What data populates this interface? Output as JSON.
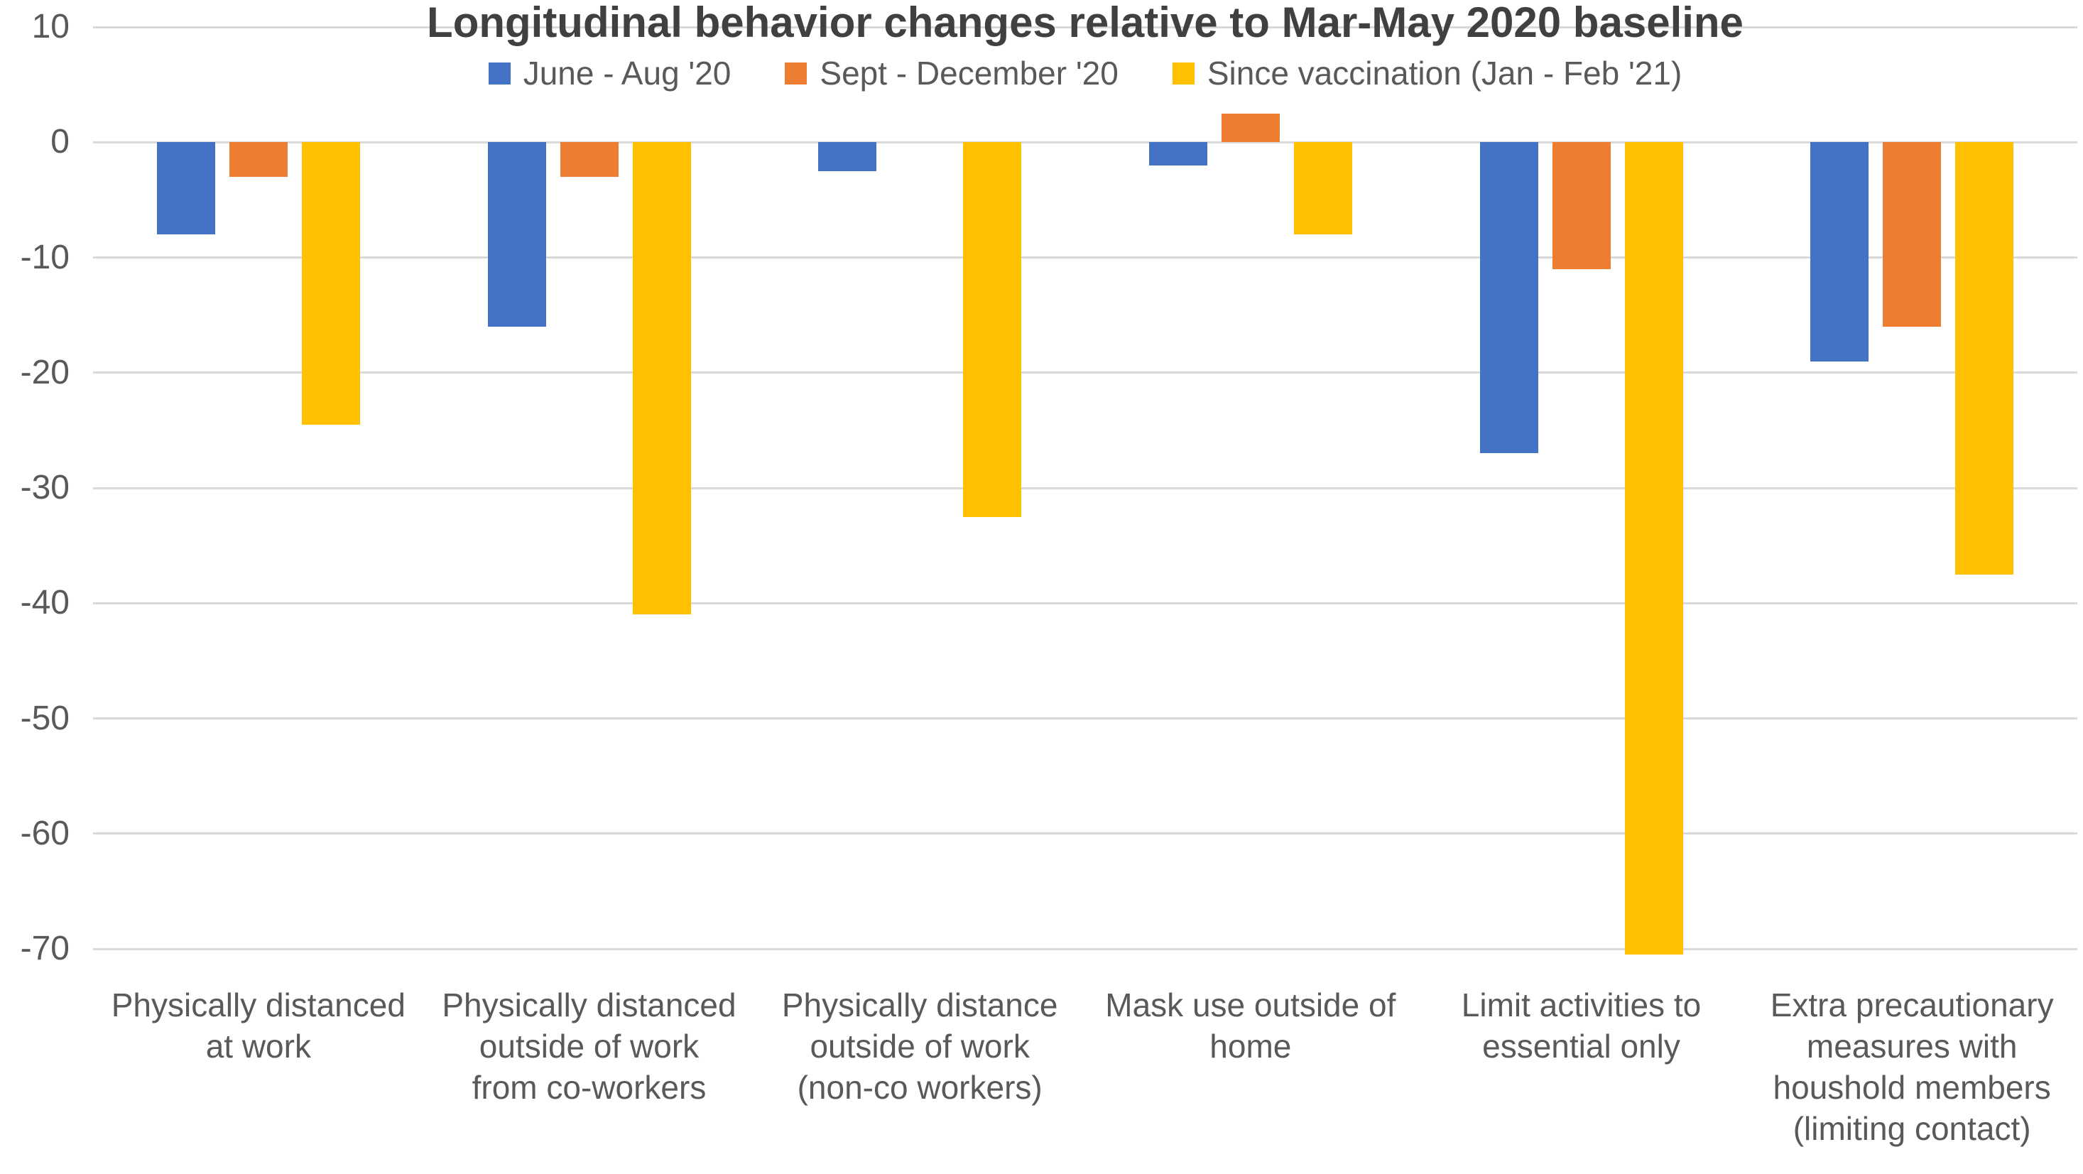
{
  "chart_data": {
    "type": "bar",
    "title": "Longitudinal behavior changes relative to Mar-May 2020 baseline",
    "categories": [
      "Physically distanced at work",
      "Physically distanced outside of work from co-workers",
      "Physically distance outside of work (non-co workers)",
      "Mask use outside of home",
      "Limit activities to essential only",
      "Extra precautionary measures with houshold members (limiting contact)"
    ],
    "category_lines": [
      [
        "Physically distanced",
        "at work"
      ],
      [
        "Physically distanced",
        "outside of work",
        "from co-workers"
      ],
      [
        "Physically distance",
        "outside of work",
        "(non-co workers)"
      ],
      [
        "Mask use outside of",
        "home"
      ],
      [
        "Limit activities to",
        "essential only"
      ],
      [
        "Extra precautionary",
        "measures with",
        "houshold members",
        "(limiting contact)"
      ]
    ],
    "series": [
      {
        "name": "June - Aug '20",
        "color": "#4472C4",
        "values": [
          -8,
          -16,
          -2.5,
          -2,
          -27,
          -19
        ]
      },
      {
        "name": "Sept - December '20",
        "color": "#ED7D31",
        "values": [
          -3,
          -3,
          0,
          2.5,
          -11,
          -16
        ]
      },
      {
        "name": "Since vaccination (Jan - Feb '21)",
        "color": "#FFC000",
        "values": [
          -24.5,
          -41,
          -32.5,
          -8,
          -70.5,
          -37.5
        ]
      }
    ],
    "ylim": [
      -70,
      10
    ],
    "yticks": [
      10,
      0,
      -10,
      -20,
      -30,
      -40,
      -50,
      -60,
      -70
    ],
    "grid": true,
    "legend_position": "top",
    "xlabel": "",
    "ylabel": ""
  },
  "styles": {
    "title_color": "#404040",
    "axis_text_color": "#595959",
    "gridline_color": "#D9D9D9",
    "background": "#FFFFFF"
  }
}
